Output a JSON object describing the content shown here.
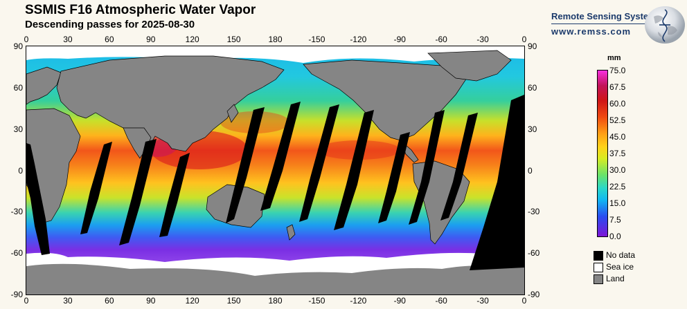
{
  "header": {
    "title": "SSMIS F16 Atmospheric Water Vapor",
    "subtitle": "Descending passes for 2025-08-30"
  },
  "branding": {
    "name": "Remote Sensing Systems",
    "url": "www.remss.com",
    "logo_icon": "globe-icon"
  },
  "map": {
    "lon_ticks": [
      "0",
      "30",
      "60",
      "90",
      "120",
      "150",
      "180",
      "-150",
      "-120",
      "-90",
      "-60",
      "-30",
      "0"
    ],
    "lat_ticks": [
      "90",
      "60",
      "30",
      "0",
      "-30",
      "-60",
      "-90"
    ],
    "lon_range": [
      0,
      360
    ],
    "lat_range": [
      -90,
      90
    ],
    "colors": {
      "no_data": "#000000",
      "sea_ice": "#ffffff",
      "land": "#858585"
    }
  },
  "colorbar": {
    "unit": "mm",
    "labels": [
      "75.0",
      "67.5",
      "60.0",
      "52.5",
      "45.0",
      "37.5",
      "30.0",
      "22.5",
      "15.0",
      "7.5",
      "0.0"
    ],
    "min": 0,
    "max": 75
  },
  "legend": {
    "items": [
      {
        "label": "No data",
        "color": "#000000"
      },
      {
        "label": "Sea ice",
        "color": "#ffffff"
      },
      {
        "label": "Land",
        "color": "#858585"
      }
    ]
  }
}
